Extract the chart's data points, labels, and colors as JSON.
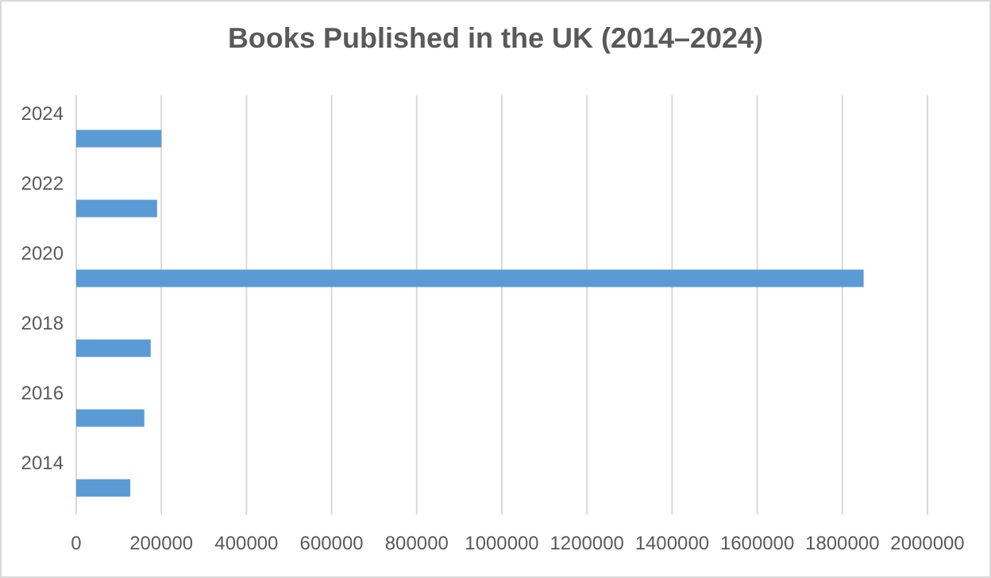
{
  "chart_data": {
    "type": "bar",
    "orientation": "horizontal",
    "title": "Books Published in the UK (2014–2024)",
    "categories": [
      "2024",
      "2022",
      "2020",
      "2018",
      "2016",
      "2014"
    ],
    "values": [
      200000,
      190000,
      1850000,
      175000,
      160000,
      127000
    ],
    "color": "#5b9bd5",
    "xlim": [
      0,
      2000000
    ],
    "xticks": [
      0,
      200000,
      400000,
      600000,
      800000,
      1000000,
      1200000,
      1400000,
      1600000,
      1800000,
      2000000
    ],
    "grid": "x"
  }
}
